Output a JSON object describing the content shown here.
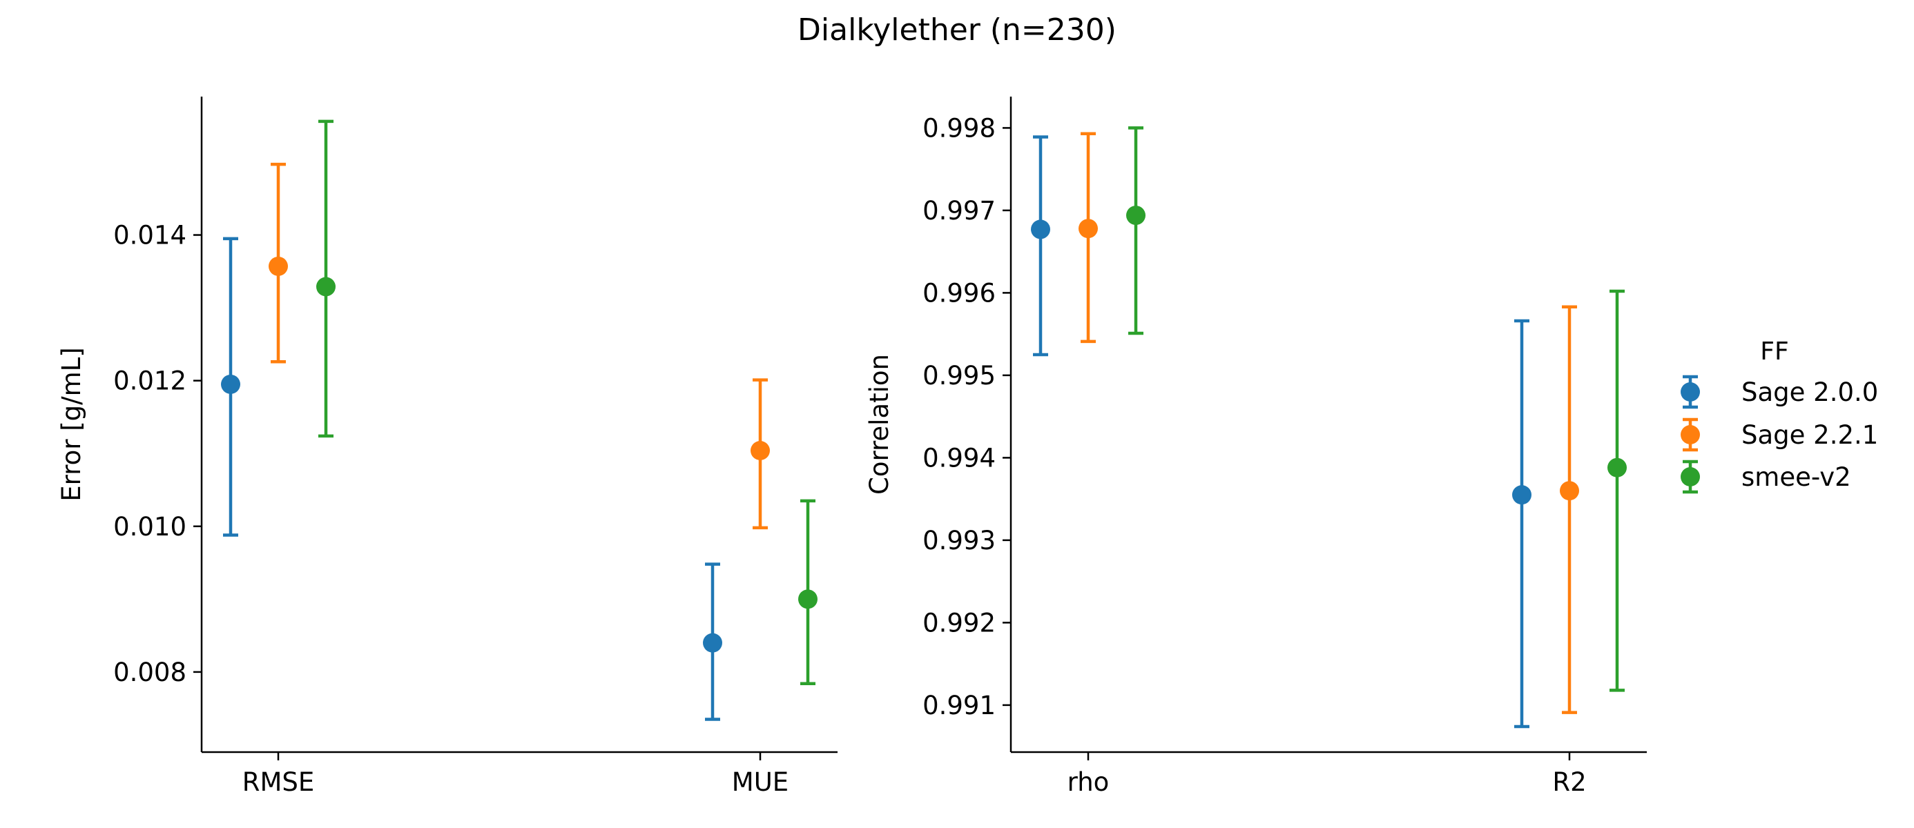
{
  "figure": {
    "title": "Dialkylether (n=230)"
  },
  "legend": {
    "title": "FF",
    "placement": "right"
  },
  "colors": {
    "Sage 2.0.0": "#1f77b4",
    "Sage 2.2.1": "#ff7f0e",
    "smee-v2": "#2ca02c"
  },
  "chart_data": [
    {
      "type": "scatter",
      "subtype": "point-with-error-bars",
      "title": "",
      "xlabel": "",
      "ylabel": "Error [g/mL]",
      "categories": [
        "RMSE",
        "MUE"
      ],
      "ylim": [
        0.0069,
        0.0159
      ],
      "yticks": [
        "0.008",
        "0.010",
        "0.012",
        "0.014"
      ],
      "grid": false,
      "series": [
        {
          "name": "Sage 2.0.0",
          "values": [
            0.01195,
            0.0084
          ],
          "lower": [
            0.00988,
            0.00735
          ],
          "upper": [
            0.01395,
            0.00948
          ]
        },
        {
          "name": "Sage 2.2.1",
          "values": [
            0.01357,
            0.01104
          ],
          "lower": [
            0.01226,
            0.00998
          ],
          "upper": [
            0.01497,
            0.01201
          ]
        },
        {
          "name": "smee-v2",
          "values": [
            0.01329,
            0.009
          ],
          "lower": [
            0.01124,
            0.00784
          ],
          "upper": [
            0.01556,
            0.01035
          ]
        }
      ]
    },
    {
      "type": "scatter",
      "subtype": "point-with-error-bars",
      "title": "",
      "xlabel": "",
      "ylabel": "Correlation",
      "categories": [
        "rho",
        "R2"
      ],
      "ylim": [
        0.99043,
        0.99838
      ],
      "yticks": [
        "0.991",
        "0.992",
        "0.993",
        "0.994",
        "0.995",
        "0.996",
        "0.997",
        "0.998"
      ],
      "grid": false,
      "series": [
        {
          "name": "Sage 2.0.0",
          "values": [
            0.99677,
            0.99355
          ],
          "lower": [
            0.99525,
            0.99074
          ],
          "upper": [
            0.99789,
            0.99566
          ]
        },
        {
          "name": "Sage 2.2.1",
          "values": [
            0.99678,
            0.9936
          ],
          "lower": [
            0.99541,
            0.99091
          ],
          "upper": [
            0.99793,
            0.99583
          ]
        },
        {
          "name": "smee-v2",
          "values": [
            0.99694,
            0.99388
          ],
          "lower": [
            0.99551,
            0.99118
          ],
          "upper": [
            0.998,
            0.99602
          ]
        }
      ]
    }
  ]
}
